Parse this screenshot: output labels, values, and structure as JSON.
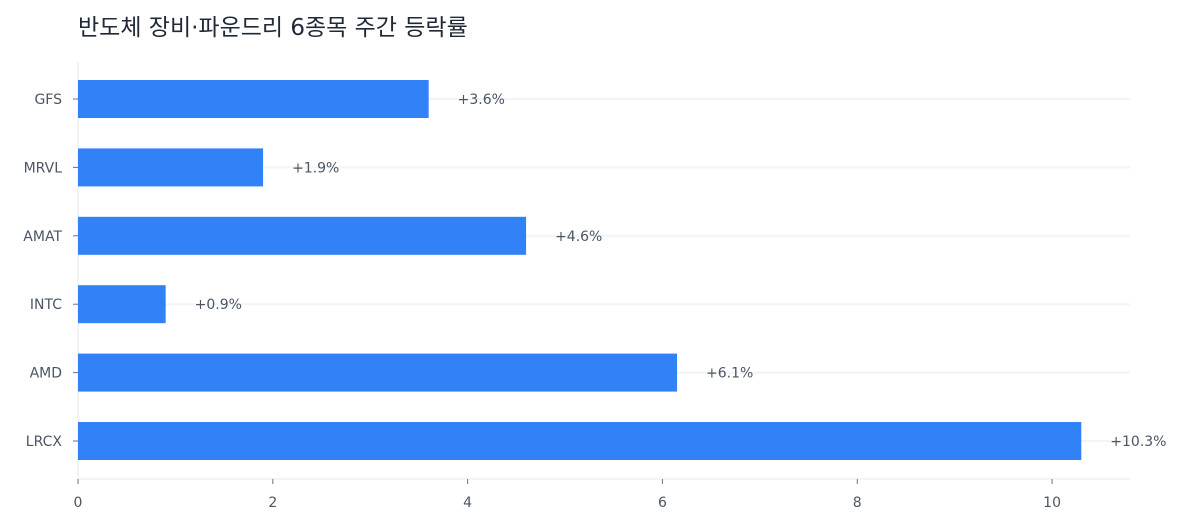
{
  "chart_data": {
    "type": "bar",
    "orientation": "horizontal",
    "title": "반도체 장비·파운드리 6종목 주간 등락률",
    "categories": [
      "GFS",
      "MRVL",
      "AMAT",
      "INTC",
      "AMD",
      "LRCX"
    ],
    "values": [
      3.6,
      1.9,
      4.6,
      0.9,
      6.15,
      10.3
    ],
    "value_labels": [
      "+3.6%",
      "+1.9%",
      "+4.6%",
      "+0.9%",
      "+6.1%",
      "+10.3%"
    ],
    "xlim": [
      0,
      10.8
    ],
    "xticks": [
      0,
      2,
      4,
      6,
      8,
      10
    ],
    "xlabel": "",
    "ylabel": "",
    "grid": "horizontal lines at each category",
    "legend": "none",
    "bar_color": "#3182f6",
    "grid_color": "#f2f4f6",
    "axis_color": "#e5e7eb",
    "text_color": "#4b5563"
  }
}
